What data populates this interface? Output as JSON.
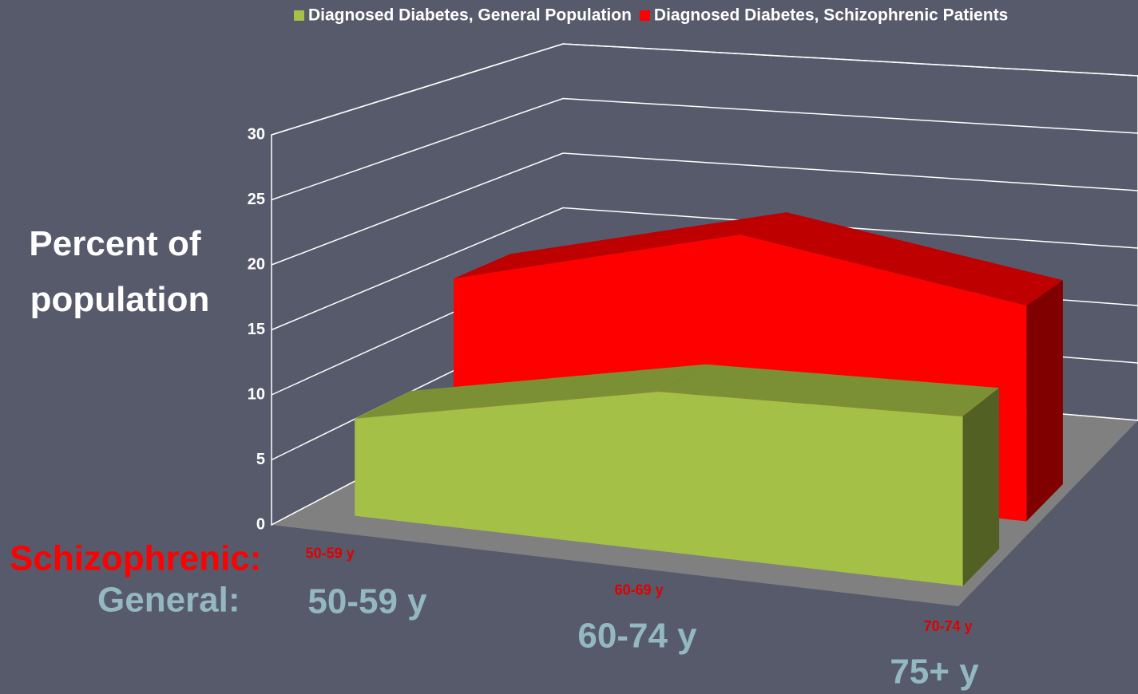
{
  "chart_data": {
    "type": "area3d",
    "y_label": "Percent of population",
    "categories": [
      "50-59 y",
      "60-69 y",
      "70-74 y"
    ],
    "series": [
      {
        "name": "Diagnosed Diabetes, General Population",
        "color": "#a4c046",
        "values": [
          7.5,
          11.5,
          11.5
        ]
      },
      {
        "name": "Diagnosed Diabetes, Schizophrenic Patients",
        "color": "#ff0000",
        "values": [
          15,
          20,
          16
        ]
      }
    ],
    "ylim": [
      0,
      30
    ],
    "yticks": [
      0,
      5,
      10,
      15,
      20,
      25,
      30
    ],
    "grid": true,
    "group_labels": {
      "schizophrenic": "Schizophrenic:",
      "general": "General:"
    },
    "general_categories": [
      "50-59 y",
      "60-74 y",
      "75+ y"
    ]
  }
}
